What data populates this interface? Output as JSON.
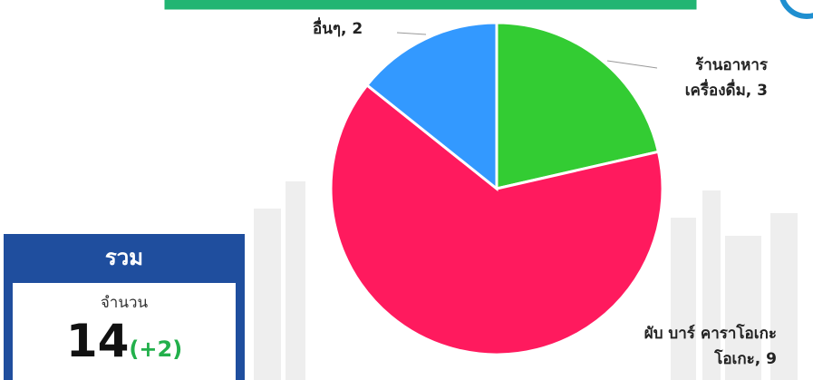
{
  "chart_data": {
    "type": "pie",
    "categories": [
      "ร้านอาหาร\nเครื่องดื่ม, 3",
      "ผับ บาร์ คาราโอเกะ\nโอเกะ, 9",
      "อื่นๆ, 2"
    ],
    "values": [
      3,
      9,
      2
    ],
    "colors": [
      "#33cc33",
      "#ff1a5e",
      "#3399ff"
    ],
    "start_angle": 0,
    "direction": "clockwise"
  },
  "summary": {
    "title": "รวม",
    "label": "จำนวน",
    "total": "14",
    "change": "(+2)"
  }
}
